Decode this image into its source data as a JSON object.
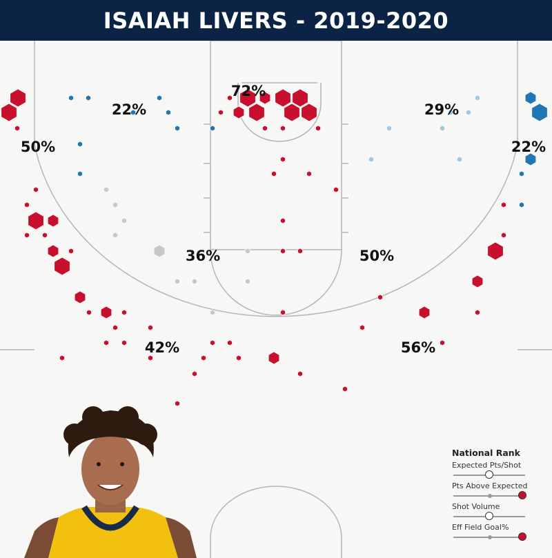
{
  "header": {
    "title": "ISAIAH LIVERS - 2019-2020"
  },
  "colors": {
    "title_bg": "#0b2446",
    "above_avg": "#c8102e",
    "below_avg_dark": "#1f78b4",
    "below_avg_light": "#9ecae1",
    "average": "#c8c8c8",
    "court_line": "#b5b5b5"
  },
  "chart_data": {
    "type": "scatter",
    "description_of_encoding": "hexbin shot chart",
    "zones": [
      {
        "id": "left-corner-three",
        "pct": "50%"
      },
      {
        "id": "left-wing-three-upper",
        "pct": "22%"
      },
      {
        "id": "rim",
        "pct": "72%"
      },
      {
        "id": "right-wing-three-upper",
        "pct": "29%"
      },
      {
        "id": "right-corner-three",
        "pct": "22%"
      },
      {
        "id": "left-midrange",
        "pct": "36%"
      },
      {
        "id": "right-midrange",
        "pct": "50%"
      },
      {
        "id": "left-wing-three",
        "pct": "42%"
      },
      {
        "id": "right-wing-three",
        "pct": "56%"
      }
    ],
    "legend": {
      "title": "National Rank",
      "metrics": [
        {
          "label": "Expected Pts/Shot",
          "rank": 0.5,
          "color": "#ffffff"
        },
        {
          "label": "Pts Above Expected",
          "rank": 1.0,
          "color": "#c8102e"
        },
        {
          "label": "Shot Volume",
          "rank": 0.5,
          "color": "#ffffff"
        },
        {
          "label": "Eff Field Goal%",
          "rank": 1.0,
          "color": "#c8102e"
        }
      ]
    }
  },
  "player": {
    "photo": "player-headshot"
  }
}
